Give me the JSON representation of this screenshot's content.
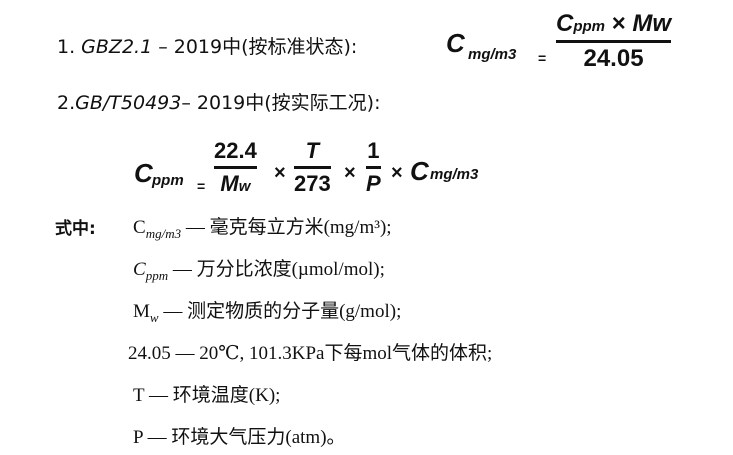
{
  "line1": {
    "prefix": "1. ",
    "standard": "GBZ2.1",
    "rest": " – 2019中(按标准状态):"
  },
  "formula1": {
    "lhs": "C",
    "lhs_sub": "mg/m3",
    "eq": "=",
    "num_c": "C",
    "num_sub": "ppm",
    "times": "×",
    "num_mw": "Mw",
    "den": "24.05"
  },
  "line2": {
    "prefix": "2.",
    "standard": "GB/T50493",
    "rest": "– 2019中(按实际工况):"
  },
  "formula2": {
    "lhs": "C",
    "lhs_sub": "ppm",
    "eq": "=",
    "f1_num": "22.4",
    "f1_den": "M",
    "f1_den_sub": "w",
    "times": "×",
    "f2_num": "T",
    "f2_den": "273",
    "f3_num": "1",
    "f3_den": "P",
    "rhs": "C",
    "rhs_sub": "mg/m3"
  },
  "legend": {
    "label": "式中:",
    "items": [
      {
        "sym": "C",
        "sub": "mg/m3",
        "desc": " — 毫克每立方米(mg/m³);"
      },
      {
        "sym": "C",
        "sub": "ppm",
        "desc": " — 万分比浓度(µmol/mol);"
      },
      {
        "sym": "M",
        "sub": "w",
        "desc": " — 测定物质的分子量(g/mol);"
      },
      {
        "sym": "24.05",
        "sub": "",
        "desc": " — 20℃, 101.3KPa下每mol气体的体积;"
      },
      {
        "sym": "T",
        "sub": "",
        "desc": " — 环境温度(K);"
      },
      {
        "sym": "P",
        "sub": "",
        "desc": " — 环境大气压力(atm)。"
      }
    ]
  }
}
